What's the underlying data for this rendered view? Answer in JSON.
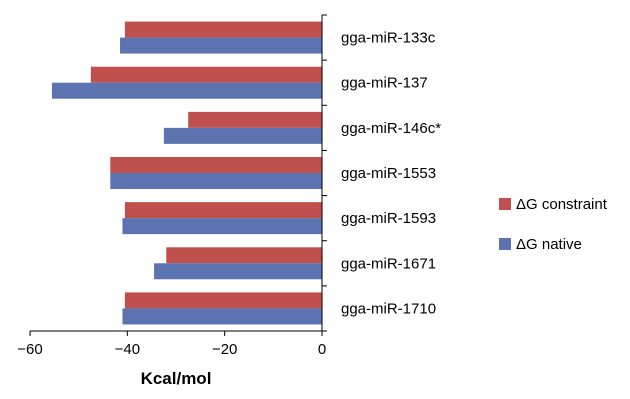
{
  "chart_data": {
    "type": "bar",
    "orientation": "horizontal",
    "categories": [
      "gga-miR-133c",
      "gga-miR-137",
      "gga-miR-146c*",
      "gga-miR-1553",
      "gga-miR-1593",
      "gga-miR-1671",
      "gga-miR-1710"
    ],
    "series": [
      {
        "name": "ΔG constraint",
        "color": "#c0504d",
        "values": [
          -40.5,
          -47.5,
          -27.5,
          -43.5,
          -40.5,
          -32,
          -40.5
        ]
      },
      {
        "name": "ΔG native",
        "color": "#5b73b0",
        "values": [
          -41.5,
          -55.5,
          -32.5,
          -43.5,
          -41,
          -34.5,
          -41
        ]
      }
    ],
    "xlabel": "Kcal/mol",
    "xlim": [
      -60,
      0
    ],
    "xticks": [
      -60,
      -40,
      -20,
      0
    ],
    "xtick_labels": [
      "−60",
      "−40",
      "−20",
      "0"
    ],
    "grid": false,
    "legend_position": "right"
  }
}
